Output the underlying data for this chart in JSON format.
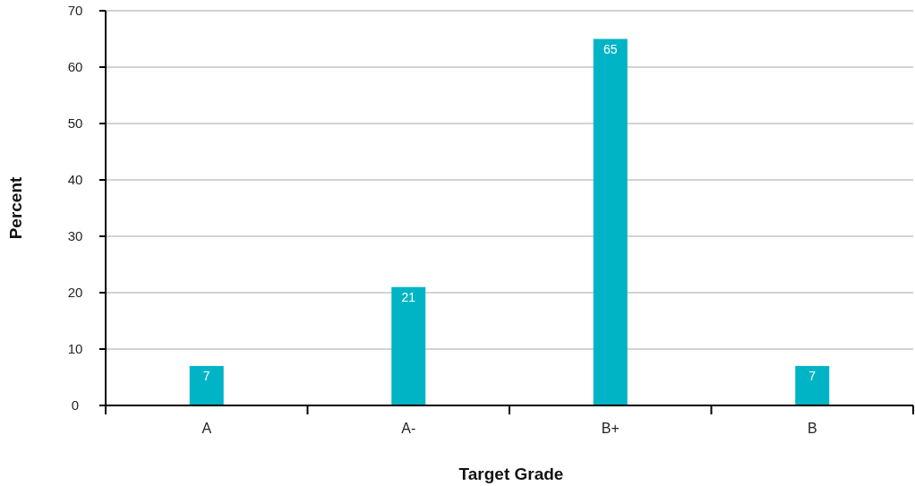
{
  "chart_data": {
    "type": "bar",
    "xlabel": "Target Grade",
    "ylabel": "Percent",
    "categories": [
      "A",
      "A-",
      "B+",
      "B"
    ],
    "values": [
      7,
      21,
      65,
      7
    ],
    "color": "#00b4c5",
    "ylim": [
      0,
      70
    ],
    "yticks": [
      0,
      10,
      20,
      30,
      40,
      50,
      60,
      70
    ],
    "grid": "y",
    "data_labels": true
  }
}
